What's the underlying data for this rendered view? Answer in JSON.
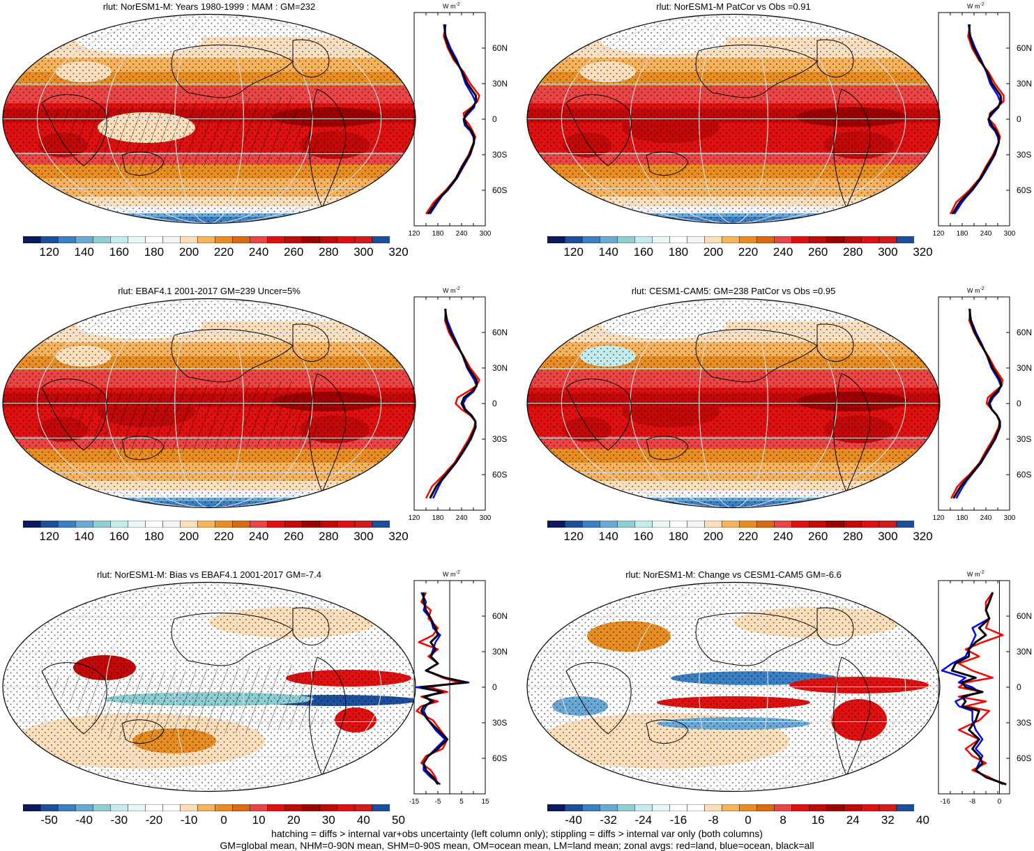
{
  "figure": {
    "footer_line1": "hatching = diffs > internal var+obs uncertainty (left column only); stippling = diffs > internal var only (both columns)",
    "footer_line2": "GM=global mean, NHM=0-90N mean, SHM=0-90S mean, OM=ocean mean, LM=land mean; zonal avgs: red=land, blue=ocean, black=all"
  },
  "colors": {
    "abs_scale": [
      "#0b1a5c",
      "#1f4f9c",
      "#3b7fc4",
      "#6aa8d6",
      "#8fcfd3",
      "#c4ecec",
      "#e8f6f6",
      "#ffffff",
      "#f4f4f4",
      "#fde0bb",
      "#f6b25c",
      "#e88d22",
      "#d76a13",
      "#ea4444",
      "#e01010",
      "#c20808",
      "#9c0000",
      "#c20808",
      "#e01010",
      "#d01c1c",
      "#1f4f9c"
    ],
    "diff_scale": [
      "#0b1a5c",
      "#1f4f9c",
      "#3b7fc4",
      "#6aa8d6",
      "#8fcfd3",
      "#c4ecec",
      "#e8f6f6",
      "#ffffff",
      "#ffffff",
      "#fde0bb",
      "#f6b25c",
      "#e88d22",
      "#d76a13",
      "#ea4444",
      "#e01010",
      "#c20808",
      "#9c0000",
      "#c20808",
      "#e01010",
      "#d01c1c",
      "#1f4f9c"
    ],
    "land": "#ff0000",
    "ocean": "#0000ff",
    "all": "#000000"
  },
  "chart_data": [
    {
      "type": "heatmap",
      "title": "rlut: NorESM1-M: Years 1980-1999 : MAM : GM=232",
      "colorbar_ticks": [
        "120",
        "140",
        "160",
        "180",
        "200",
        "220",
        "240",
        "260",
        "280",
        "300",
        "320"
      ],
      "zonal": {
        "type": "line",
        "unit": "W m",
        "unit_sup": "-2",
        "xticks": [
          "120",
          "180",
          "240",
          "300"
        ],
        "xlim": [
          120,
          300
        ],
        "ylabels": [
          "60N",
          "30N",
          "0",
          "30S",
          "60S"
        ],
        "lat": [
          80,
          70,
          60,
          50,
          40,
          30,
          20,
          15,
          10,
          5,
          0,
          -5,
          -10,
          -15,
          -20,
          -30,
          -40,
          -50,
          -60,
          -65,
          -70,
          -80
        ],
        "series": [
          {
            "name": "land",
            "values": [
              200,
              195,
              205,
              220,
              245,
              262,
              285,
              280,
              265,
              245,
              248,
              260,
              268,
              275,
              270,
              258,
              240,
              225,
              200,
              185,
              170,
              150
            ]
          },
          {
            "name": "ocean",
            "values": [
              195,
              200,
              212,
              228,
              240,
              250,
              268,
              275,
              272,
              258,
              245,
              248,
              262,
              270,
              272,
              262,
              245,
              228,
              205,
              190,
              180,
              160
            ]
          },
          {
            "name": "all",
            "values": [
              198,
              198,
              208,
              224,
              242,
              255,
              276,
              277,
              268,
              252,
              246,
              253,
              265,
              272,
              271,
              260,
              242,
              226,
              203,
              188,
              176,
              155
            ]
          }
        ]
      }
    },
    {
      "type": "heatmap",
      "title": "rlut: NorESM1-M PatCor vs Obs =0.91",
      "colorbar_ticks": [
        "120",
        "140",
        "160",
        "180",
        "200",
        "220",
        "240",
        "260",
        "280",
        "300",
        "320"
      ],
      "zonal": {
        "type": "line",
        "unit": "W m",
        "unit_sup": "-2",
        "xticks": [
          "120",
          "180",
          "240",
          "300"
        ],
        "xlim": [
          120,
          300
        ],
        "ylabels": [
          "60N",
          "30N",
          "0",
          "30S",
          "60S"
        ],
        "lat": [
          80,
          70,
          60,
          50,
          40,
          30,
          20,
          15,
          10,
          5,
          0,
          -5,
          -10,
          -15,
          -20,
          -30,
          -40,
          -50,
          -60,
          -65,
          -70,
          -80
        ],
        "series": [
          {
            "name": "land",
            "values": [
              200,
              195,
              205,
              222,
              246,
              263,
              285,
              285,
              268,
              250,
              248,
              262,
              270,
              276,
              272,
              258,
              240,
              224,
              198,
              182,
              165,
              150
            ]
          },
          {
            "name": "ocean",
            "values": [
              196,
              201,
              213,
              228,
              241,
              251,
              270,
              276,
              272,
              258,
              246,
              250,
              263,
              270,
              273,
              263,
              246,
              228,
              206,
              192,
              180,
              160
            ]
          },
          {
            "name": "all",
            "values": [
              198,
              199,
              209,
              225,
              243,
              256,
              277,
              279,
              270,
              253,
              247,
              255,
              266,
              273,
              272,
              261,
              243,
              226,
              203,
              188,
              174,
              155
            ]
          }
        ]
      }
    },
    {
      "type": "heatmap",
      "title": "rlut: EBAF4.1 2001-2017 GM=239 Uncer=5%",
      "colorbar_ticks": [
        "120",
        "140",
        "160",
        "180",
        "200",
        "220",
        "240",
        "260",
        "280",
        "300",
        "320"
      ],
      "zonal": {
        "type": "line",
        "unit": "W m",
        "unit_sup": "-2",
        "xticks": [
          "120",
          "180",
          "240",
          "300"
        ],
        "xlim": [
          120,
          300
        ],
        "ylabels": [
          "60N",
          "30N",
          "0",
          "30S",
          "60S"
        ],
        "lat": [
          80,
          70,
          60,
          50,
          40,
          30,
          20,
          15,
          10,
          5,
          0,
          -5,
          -10,
          -15,
          -20,
          -30,
          -40,
          -50,
          -60,
          -65,
          -70,
          -80
        ],
        "series": [
          {
            "name": "land",
            "values": [
              200,
              198,
              208,
              225,
              245,
              262,
              285,
              278,
              255,
              230,
              225,
              240,
              262,
              275,
              272,
              258,
              240,
              222,
              195,
              180,
              165,
              150
            ]
          },
          {
            "name": "ocean",
            "values": [
              198,
              204,
              216,
              230,
              243,
              254,
              272,
              278,
              270,
              252,
              244,
              250,
              266,
              275,
              276,
              264,
              246,
              226,
              202,
              190,
              182,
              168
            ]
          },
          {
            "name": "all",
            "values": [
              199,
              201,
              212,
              228,
              244,
              257,
              278,
              278,
              265,
              246,
              240,
              248,
              265,
              275,
              275,
              262,
              244,
              225,
              200,
              187,
              176,
              160
            ]
          }
        ]
      }
    },
    {
      "type": "heatmap",
      "title": "rlut: CESM1-CAM5: GM=238 PatCor vs Obs =0.95",
      "colorbar_ticks": [
        "120",
        "140",
        "160",
        "180",
        "200",
        "220",
        "240",
        "260",
        "280",
        "300",
        "320"
      ],
      "zonal": {
        "type": "line",
        "unit": "W m",
        "unit_sup": "-2",
        "xticks": [
          "120",
          "180",
          "240",
          "300"
        ],
        "xlim": [
          120,
          300
        ],
        "ylabels": [
          "60N",
          "30N",
          "0",
          "30S",
          "60S"
        ],
        "lat": [
          80,
          70,
          60,
          50,
          40,
          30,
          20,
          15,
          10,
          5,
          0,
          -5,
          -10,
          -15,
          -20,
          -30,
          -40,
          -50,
          -60,
          -65,
          -70,
          -80
        ],
        "series": [
          {
            "name": "land",
            "values": [
              200,
              198,
              210,
              226,
              246,
              262,
              282,
              280,
              262,
              245,
              242,
              255,
              268,
              275,
              272,
              258,
              240,
              224,
              198,
              182,
              168,
              152
            ]
          },
          {
            "name": "ocean",
            "values": [
              198,
              203,
              215,
              230,
              243,
              254,
              272,
              278,
              272,
              258,
              250,
              255,
              268,
              276,
              276,
              264,
              246,
              228,
              204,
              192,
              182,
              165
            ]
          },
          {
            "name": "all",
            "values": [
              199,
              201,
              212,
              228,
              244,
              257,
              276,
              279,
              268,
              253,
              247,
              255,
              268,
              275,
              275,
              262,
              244,
              226,
              202,
              188,
              176,
              158
            ]
          }
        ]
      }
    },
    {
      "type": "heatmap",
      "title": "rlut: NorESM1-M: Bias vs EBAF4.1 2001-2017 GM=-7.4",
      "colorbar_ticks": [
        "-50",
        "-40",
        "-30",
        "-20",
        "-10",
        "0",
        "10",
        "20",
        "30",
        "40",
        "50"
      ],
      "zonal": {
        "type": "line",
        "unit": "W m",
        "unit_sup": "-2",
        "xticks": [
          "-15",
          "-5",
          "5",
          "15"
        ],
        "xlim": [
          -15,
          15
        ],
        "ylabels": [
          "60N",
          "30N",
          "0",
          "30S",
          "60S"
        ],
        "lat": [
          80,
          72,
          65,
          58,
          50,
          44,
          38,
          32,
          26,
          20,
          14,
          8,
          4,
          0,
          -4,
          -8,
          -12,
          -16,
          -20,
          -28,
          -36,
          -44,
          -52,
          -58,
          -64,
          -70,
          -76,
          -82
        ],
        "series": [
          {
            "name": "land",
            "values": [
              -10,
              -12,
              -8,
              -9,
              -5,
              -7,
              -13,
              -5,
              -9,
              -5,
              -10,
              -3,
              4,
              -9,
              -1,
              -12,
              -5,
              -12,
              -14,
              -7,
              -4,
              -1,
              -3,
              -10,
              -12,
              -8,
              -6,
              -5
            ]
          },
          {
            "name": "ocean",
            "values": [
              -12,
              -10,
              -11,
              -8,
              -7,
              -4,
              -6,
              -7,
              -8,
              -5,
              -10,
              -2,
              8,
              -14,
              -3,
              -10,
              -8,
              -10,
              -11,
              -9,
              -6,
              -2,
              -6,
              -9,
              -11,
              -11,
              -8,
              -4
            ]
          },
          {
            "name": "all",
            "values": [
              -11,
              -11,
              -10,
              -8,
              -6,
              -5,
              -8,
              -6,
              -8,
              -5,
              -10,
              -2,
              7,
              -12,
              -3,
              -11,
              -7,
              -11,
              -12,
              -9,
              -5,
              -1,
              -5,
              -9,
              -11,
              -10,
              -7,
              -5
            ]
          }
        ]
      }
    },
    {
      "type": "heatmap",
      "title": "rlut: NorESM1-M: Change vs CESM1-CAM5 GM=-6.6",
      "colorbar_ticks": [
        "-40",
        "-32",
        "-24",
        "-16",
        "-8",
        "0",
        "8",
        "16",
        "24",
        "32",
        "40"
      ],
      "zonal": {
        "type": "line",
        "unit": "W m",
        "unit_sup": "-2",
        "xticks": [
          "-16",
          "-8",
          "0"
        ],
        "xlim": [
          -18,
          3
        ],
        "ylabels": [
          "60N",
          "30N",
          "0",
          "30S",
          "60S"
        ],
        "lat": [
          80,
          72,
          65,
          58,
          50,
          44,
          38,
          32,
          26,
          20,
          14,
          8,
          4,
          0,
          -4,
          -8,
          -12,
          -16,
          -20,
          -28,
          -36,
          -44,
          -52,
          -58,
          -64,
          -70,
          -76,
          -82
        ],
        "series": [
          {
            "name": "land",
            "values": [
              -2,
              -4,
              -4,
              -3,
              -4,
              1,
              -5,
              -10,
              -6,
              -12,
              -8,
              -2,
              -10,
              -12,
              -5,
              -12,
              -4,
              -10,
              -3,
              -6,
              -12,
              -6,
              -10,
              -8,
              -4,
              -8,
              -3,
              1
            ]
          },
          {
            "name": "ocean",
            "values": [
              -2,
              -3,
              -4,
              -3,
              -8,
              -7,
              -8,
              -9,
              -10,
              -14,
              -17,
              -10,
              -12,
              -8,
              -6,
              -10,
              -13,
              -12,
              -8,
              -8,
              -7,
              -5,
              -7,
              -5,
              -6,
              -7,
              -4,
              2
            ]
          },
          {
            "name": "all",
            "values": [
              -2,
              -3,
              -4,
              -3,
              -6,
              -4,
              -7,
              -9,
              -9,
              -13,
              -14,
              -7,
              -11,
              -10,
              -5,
              -11,
              -10,
              -11,
              -6,
              -7,
              -9,
              -6,
              -8,
              -6,
              -5,
              -7,
              -4,
              2
            ]
          }
        ]
      }
    }
  ]
}
